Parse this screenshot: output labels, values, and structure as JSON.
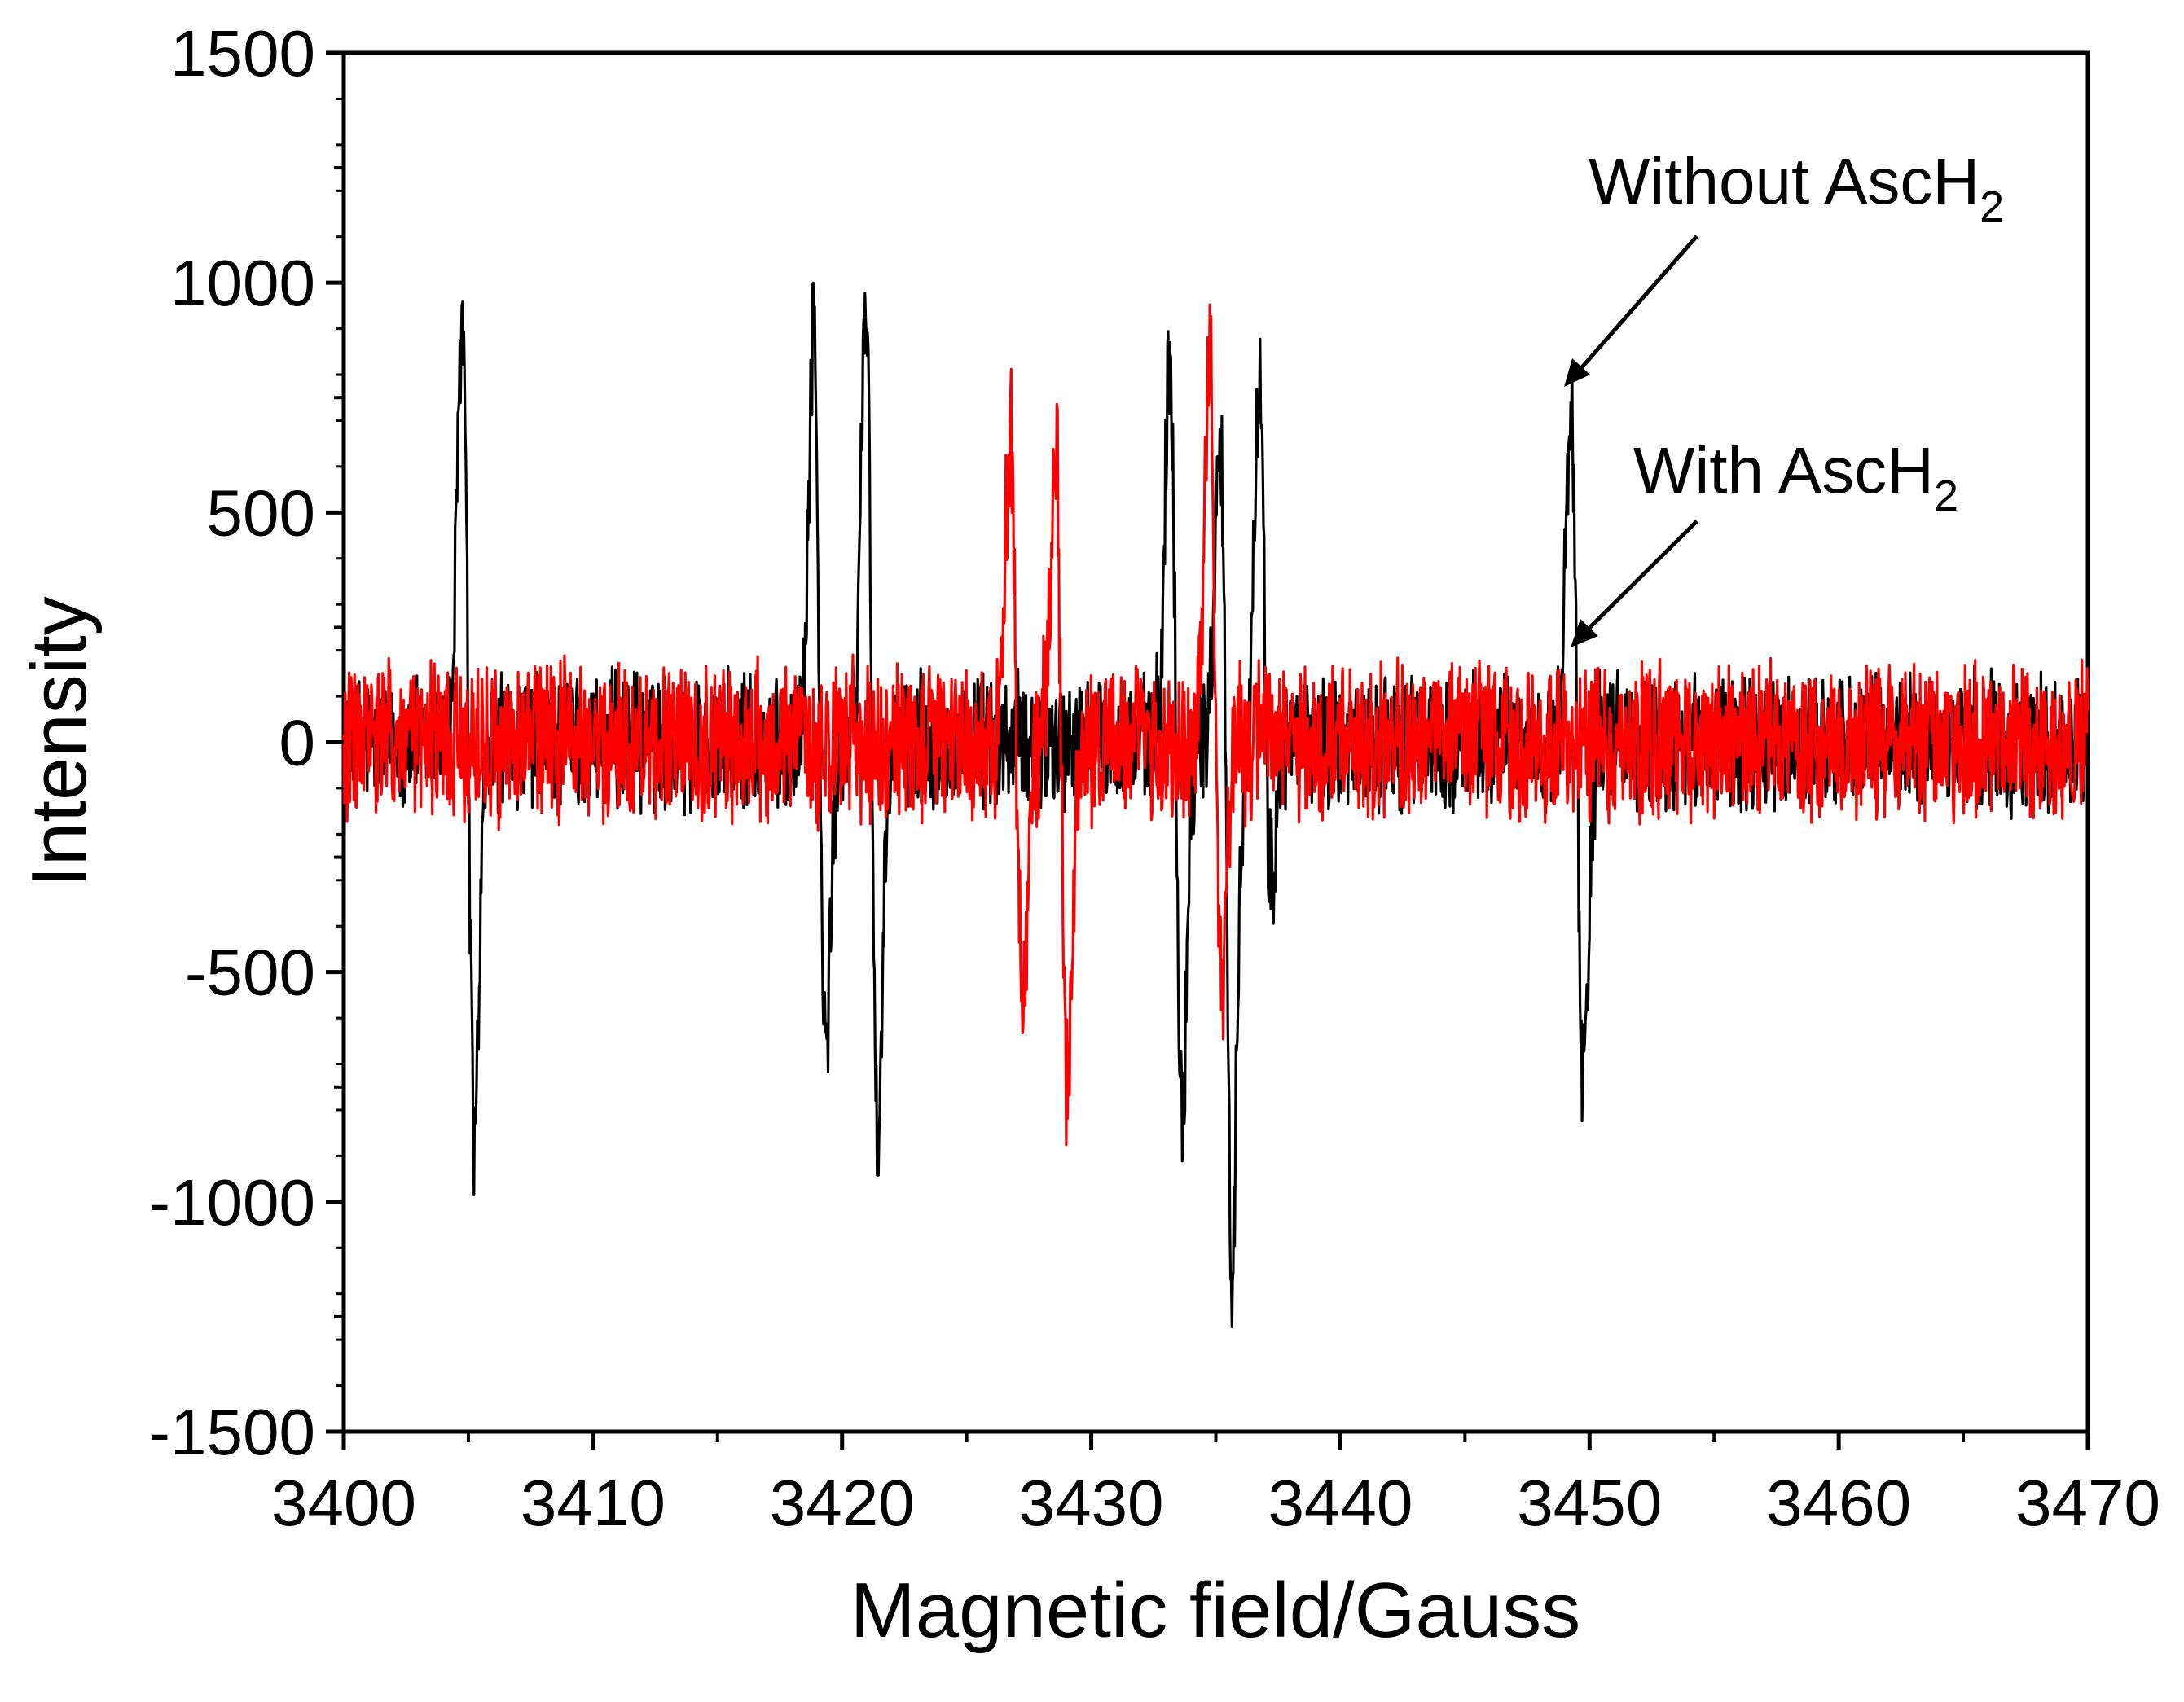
{
  "chart_data": {
    "type": "line",
    "title": "",
    "xlabel": "Magnetic field/Gauss",
    "ylabel": "Intensity",
    "xlim": [
      3400,
      3470
    ],
    "ylim": [
      -1500,
      1500
    ],
    "xticks": [
      3400,
      3410,
      3420,
      3430,
      3440,
      3450,
      3460,
      3470
    ],
    "yticks": [
      1500,
      1000,
      500,
      0,
      -500,
      -1000,
      -1500
    ],
    "grid": false,
    "legend": "none",
    "series": [
      {
        "color": "#000000",
        "noise_amplitude": 130,
        "peaks": [
          {
            "center": 3405.0,
            "max": 920,
            "min": -860
          },
          {
            "center": 3419.1,
            "max": 920,
            "min": -670
          },
          {
            "center": 3421.2,
            "max": 970,
            "min": -890
          },
          {
            "center": 3433.4,
            "max": 850,
            "min": -790
          },
          {
            "center": 3435.4,
            "max": 690,
            "min": -1160
          },
          {
            "center": 3437.0,
            "max": 750,
            "min": -300
          },
          {
            "center": 3449.5,
            "max": 750,
            "min": -740
          }
        ]
      },
      {
        "color": "#ff0000",
        "noise_amplitude": 150,
        "peaks": [
          {
            "center": 3427.0,
            "max": 680,
            "min": -570
          },
          {
            "center": 3428.8,
            "max": 650,
            "min": -750
          },
          {
            "center": 3435.0,
            "max": 860,
            "min": -480
          }
        ]
      }
    ],
    "annotations": [
      {
        "text": "Without AscH",
        "subscript": "2",
        "arrow_to": [
          3448.9,
          750
        ]
      },
      {
        "text": "With AscH",
        "subscript": "2",
        "arrow_to": [
          3449.1,
          200
        ]
      }
    ]
  }
}
